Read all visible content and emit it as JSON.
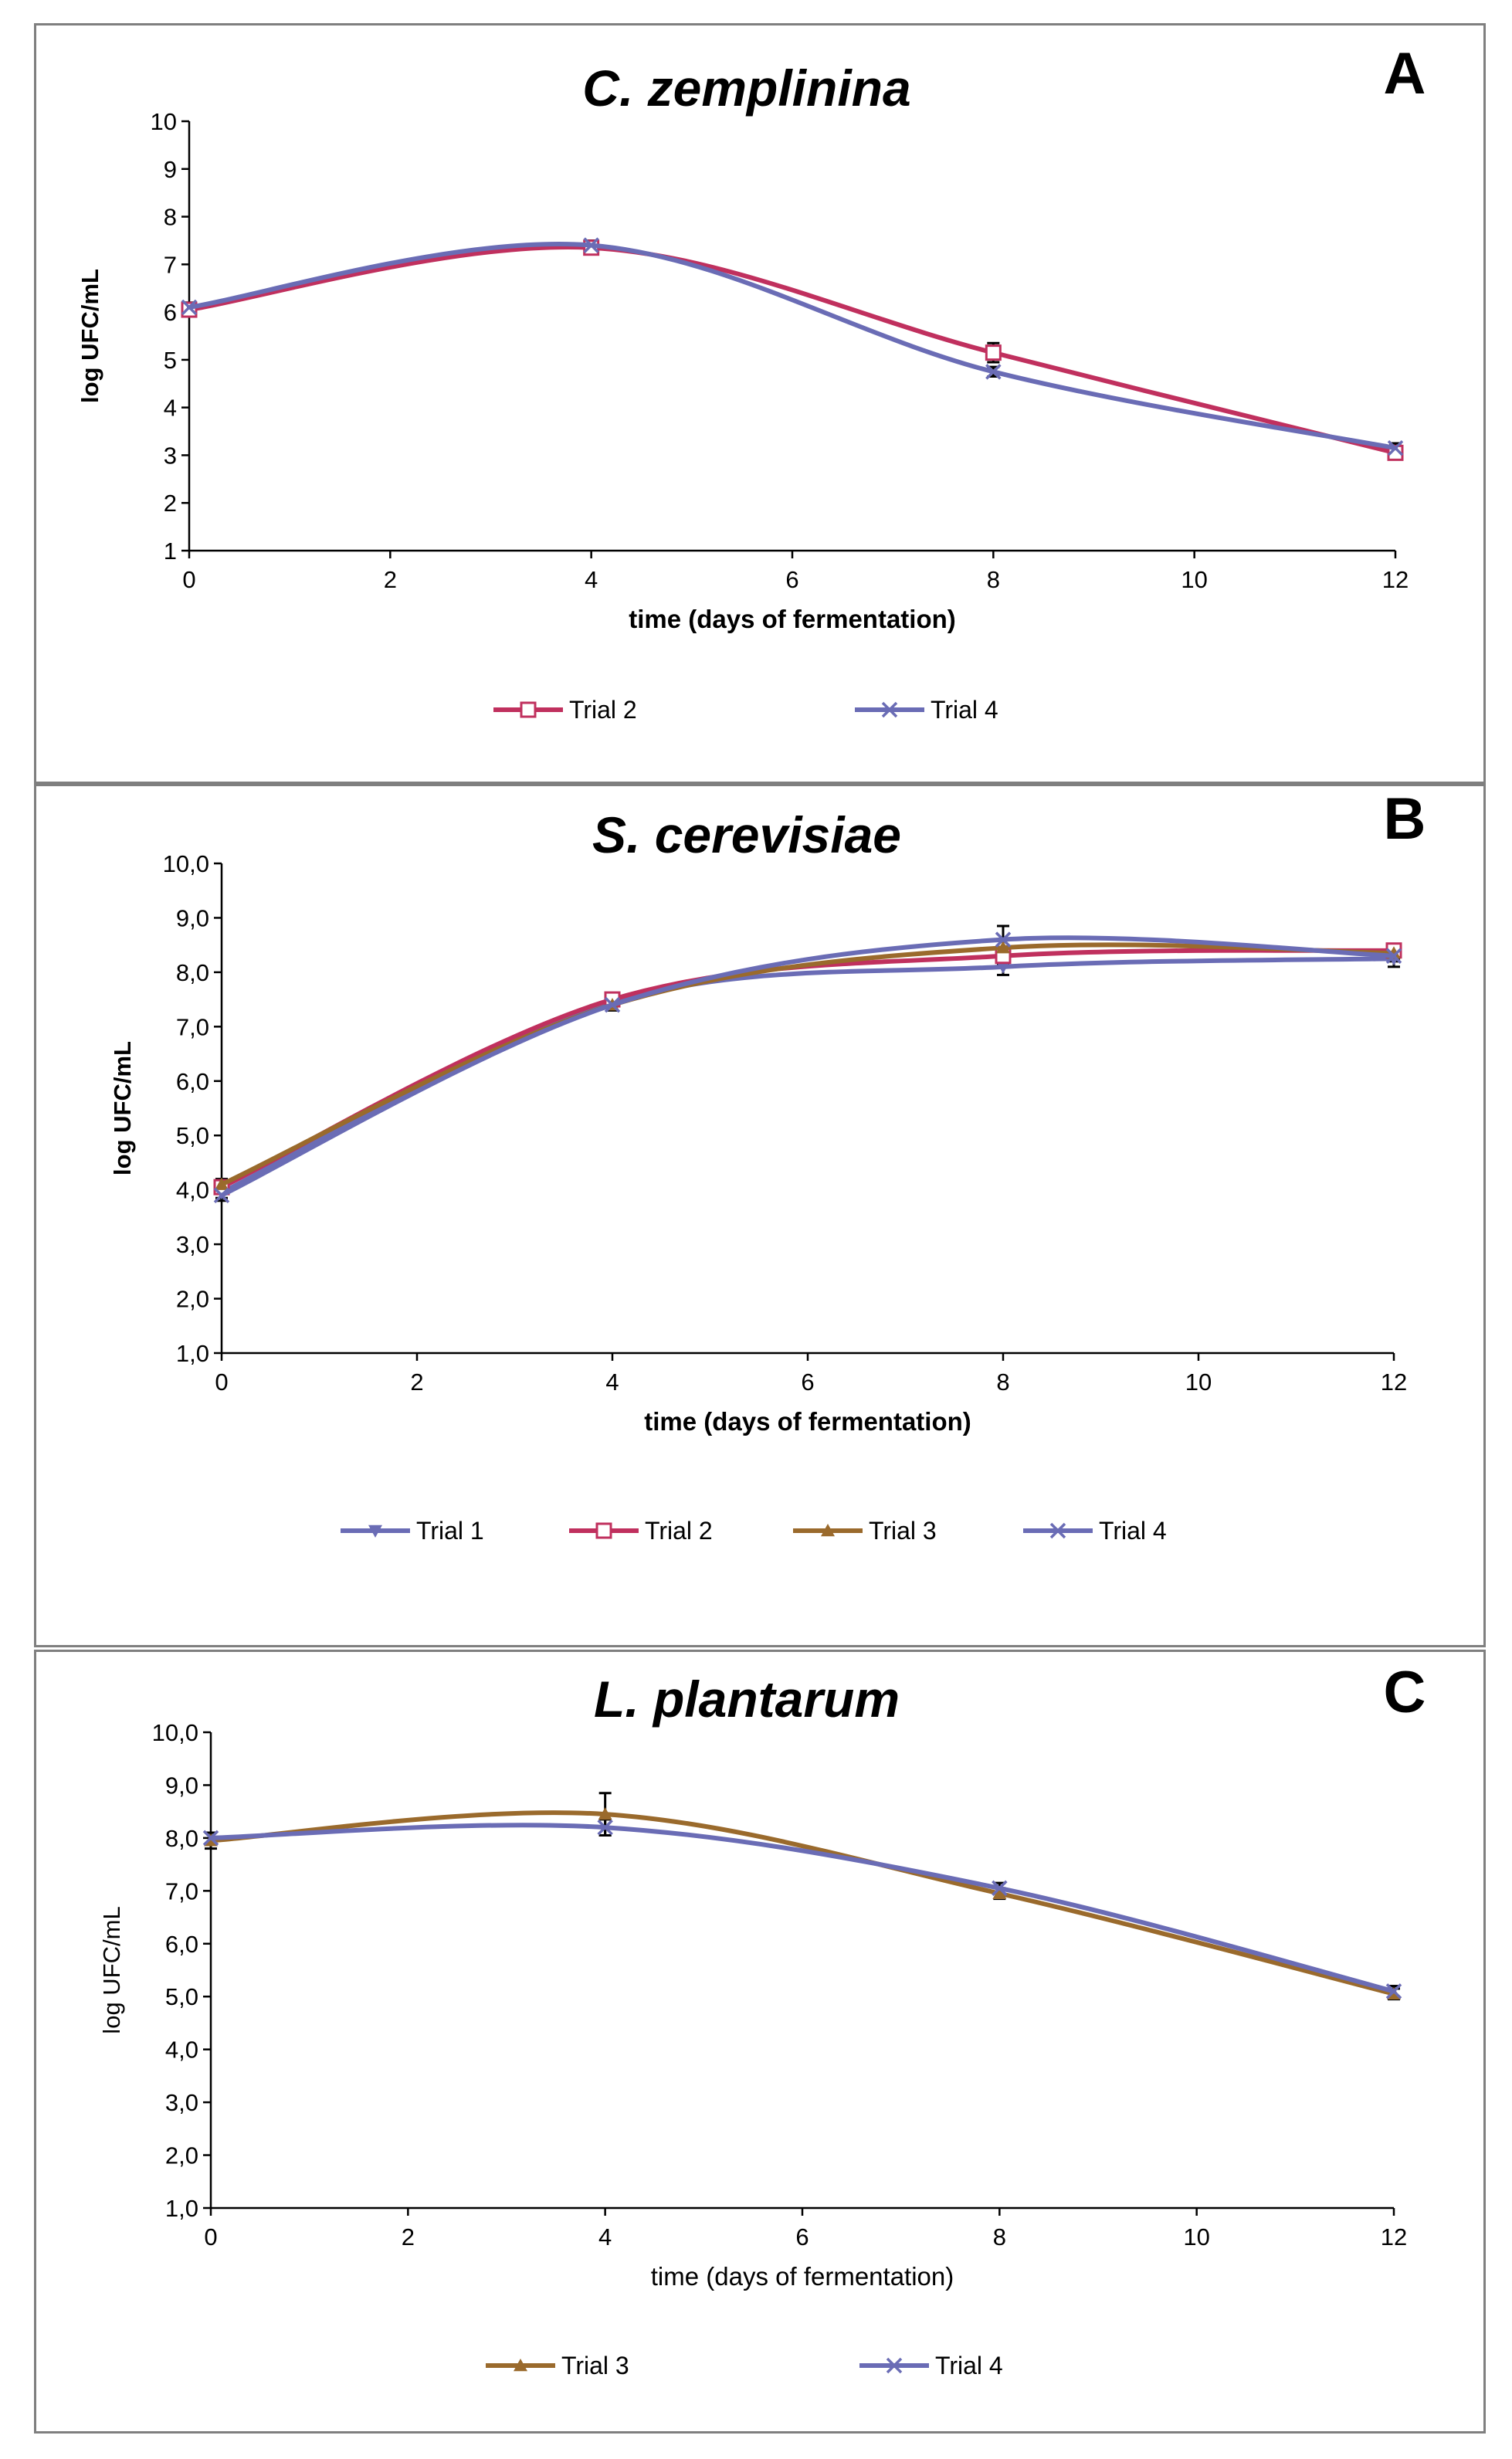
{
  "chart_data": [
    {
      "type": "line",
      "panel_letter": "A",
      "title": "C. zemplinina",
      "xlabel": "time (days of fermentation)",
      "ylabel": "log UFC/mL",
      "xlim": [
        0,
        12
      ],
      "ylim": [
        1,
        10
      ],
      "xticks": [
        "0",
        "2",
        "4",
        "6",
        "8",
        "10",
        "12"
      ],
      "yticks": [
        "1",
        "2",
        "3",
        "4",
        "5",
        "6",
        "7",
        "8",
        "9",
        "10"
      ],
      "x": [
        0,
        4,
        8,
        12
      ],
      "series": [
        {
          "name": "Trial 2",
          "color": "#c0305e",
          "marker": "square",
          "values": [
            6.05,
            7.35,
            5.15,
            3.05
          ],
          "errors": [
            0.1,
            0.1,
            0.2,
            0.1
          ]
        },
        {
          "name": "Trial 4",
          "color": "#6a6cb5",
          "marker": "x",
          "values": [
            6.1,
            7.4,
            4.75,
            3.15
          ],
          "errors": [
            0.1,
            0.1,
            0.1,
            0.1
          ]
        }
      ]
    },
    {
      "type": "line",
      "panel_letter": "B",
      "title": "S. cerevisiae",
      "xlabel": "time (days of fermentation)",
      "ylabel": "log UFC/mL",
      "xlim": [
        0,
        12
      ],
      "ylim": [
        1,
        10
      ],
      "xticks": [
        "0",
        "2",
        "4",
        "6",
        "8",
        "10",
        "12"
      ],
      "yticks": [
        "1,0",
        "2,0",
        "3,0",
        "4,0",
        "5,0",
        "6,0",
        "7,0",
        "8,0",
        "9,0",
        "10,0"
      ],
      "x": [
        0,
        4,
        8,
        12
      ],
      "series": [
        {
          "name": "Trial 1",
          "color": "#6a6cb5",
          "marker": "triangle-down",
          "values": [
            3.95,
            7.45,
            8.1,
            8.25
          ],
          "errors": [
            0.1,
            0.15,
            0.15,
            0.15
          ]
        },
        {
          "name": "Trial 2",
          "color": "#c0305e",
          "marker": "square",
          "values": [
            4.05,
            7.5,
            8.3,
            8.4
          ],
          "errors": [
            0.1,
            0.1,
            0.15,
            0.1
          ]
        },
        {
          "name": "Trial 3",
          "color": "#9a6a2c",
          "marker": "triangle",
          "values": [
            4.1,
            7.4,
            8.45,
            8.35
          ],
          "errors": [
            0.1,
            0.1,
            0.15,
            0.1
          ]
        },
        {
          "name": "Trial 4",
          "color": "#6a6cb5",
          "marker": "x",
          "values": [
            3.9,
            7.4,
            8.6,
            8.3
          ],
          "errors": [
            0.1,
            0.1,
            0.25,
            0.1
          ]
        }
      ]
    },
    {
      "type": "line",
      "panel_letter": "C",
      "title": "L. plantarum",
      "xlabel": "time (days of fermentation)",
      "ylabel": "log UFC/mL",
      "xlim": [
        0,
        12
      ],
      "ylim": [
        1,
        10
      ],
      "xticks": [
        "0",
        "2",
        "4",
        "6",
        "8",
        "10",
        "12"
      ],
      "yticks": [
        "1,0",
        "2,0",
        "3,0",
        "4,0",
        "5,0",
        "6,0",
        "7,0",
        "8,0",
        "9,0",
        "10,0"
      ],
      "x": [
        0,
        4,
        8,
        12
      ],
      "series": [
        {
          "name": "Trial 3",
          "color": "#9a6a2c",
          "marker": "triangle",
          "values": [
            7.95,
            8.45,
            6.95,
            5.05
          ],
          "errors": [
            0.15,
            0.4,
            0.1,
            0.1
          ]
        },
        {
          "name": "Trial 4",
          "color": "#6a6cb5",
          "marker": "x",
          "values": [
            8.0,
            8.2,
            7.05,
            5.1
          ],
          "errors": [
            0.1,
            0.15,
            0.1,
            0.1
          ]
        }
      ]
    }
  ]
}
